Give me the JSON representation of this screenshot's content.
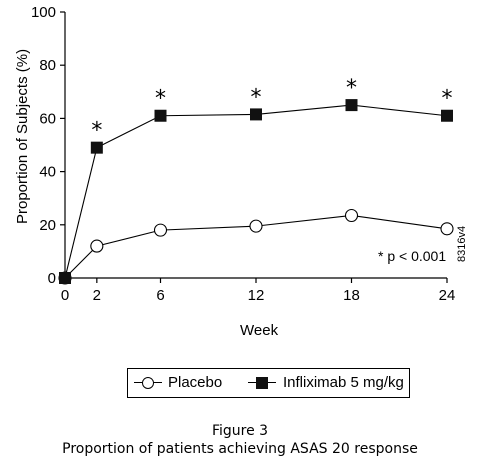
{
  "chart_data": {
    "type": "line",
    "x": [
      0,
      2,
      6,
      12,
      18,
      24
    ],
    "xlabel": "Week",
    "ylabel": "Proportion of Subjects (%)",
    "ylim": [
      0,
      100
    ],
    "yticks": [
      0,
      20,
      40,
      60,
      80,
      100
    ],
    "xtick_labels": [
      "0",
      "2",
      "6",
      "12",
      "18",
      "24"
    ],
    "series": [
      {
        "name": "Placebo",
        "marker": "open-circle",
        "values": [
          0,
          12,
          18,
          19.5,
          23.5,
          18.5
        ]
      },
      {
        "name": "Infliximab 5 mg/kg",
        "marker": "filled-square",
        "values": [
          0,
          49,
          61,
          61.5,
          65,
          61
        ]
      }
    ],
    "significance_markers": {
      "symbol": "*",
      "x": [
        2,
        6,
        12,
        18,
        24
      ],
      "series": "Infliximab 5 mg/kg"
    },
    "annotation": "* p < 0.001",
    "side_label": "8316v4",
    "legend_position": "bottom-center",
    "grid": false
  },
  "caption": {
    "line1": "Figure 3",
    "line2": "Proportion of patients achieving ASAS 20 response"
  },
  "colors": {
    "line": "#000000",
    "filled_marker": "#111111",
    "open_marker_fill": "#ffffff"
  }
}
